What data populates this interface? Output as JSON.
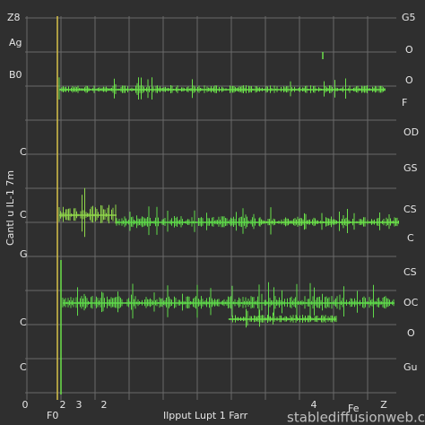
{
  "left_labels": [
    "Z8",
    "Ag",
    "B0",
    "C",
    "C",
    "G",
    "C",
    "C"
  ],
  "vertical_label": "Cantl u IL-1 7m",
  "right_labels": [
    "G5",
    "O",
    "O",
    "F",
    "OD",
    "GS",
    "CS",
    "C",
    "CS",
    "OC",
    "O",
    "Gu"
  ],
  "bottom_ticks": [
    "0",
    "2",
    "3",
    "2",
    "4",
    "Z"
  ],
  "bottom_left": "F0",
  "bottom_title": "Ilpput Lupt 1 Farr",
  "bottom_right": "Fe",
  "watermark": "stablediffusionweb.com"
}
